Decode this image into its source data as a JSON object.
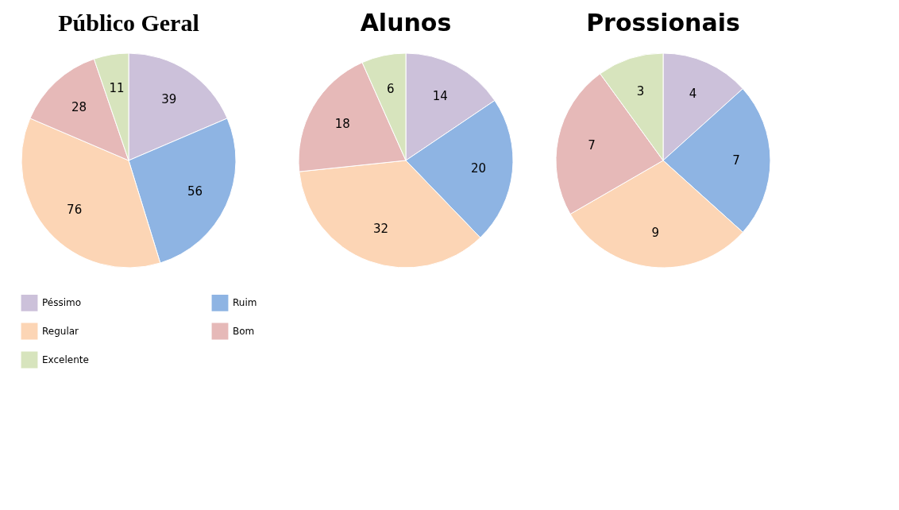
{
  "chart_data": [
    {
      "type": "pie",
      "title": "Público Geral",
      "categories": [
        "Péssimo",
        "Ruim",
        "Regular",
        "Bom",
        "Excelente"
      ],
      "values": [
        39,
        56,
        76,
        28,
        11
      ],
      "colors": [
        "#ccc1da",
        "#8eb4e3",
        "#fcd5b5",
        "#e6b9b8",
        "#d7e4bd"
      ],
      "data_labels": true,
      "legend": "bottom"
    },
    {
      "type": "pie",
      "title": "Alunos",
      "categories": [
        null,
        null,
        null,
        null,
        null
      ],
      "values": [
        14,
        20,
        32,
        18,
        6
      ],
      "colors": [
        "#ccc1da",
        "#8eb4e3",
        "#fcd5b5",
        "#e6b9b8",
        "#d7e4bd"
      ],
      "data_labels": true
    },
    {
      "type": "pie",
      "title": "Prossionais",
      "categories": [
        null,
        null,
        null,
        null,
        null
      ],
      "values": [
        4,
        7,
        9,
        7,
        3
      ],
      "colors": [
        "#ccc1da",
        "#8eb4e3",
        "#fcd5b5",
        "#e6b9b8",
        "#d7e4bd"
      ],
      "data_labels": true
    }
  ]
}
